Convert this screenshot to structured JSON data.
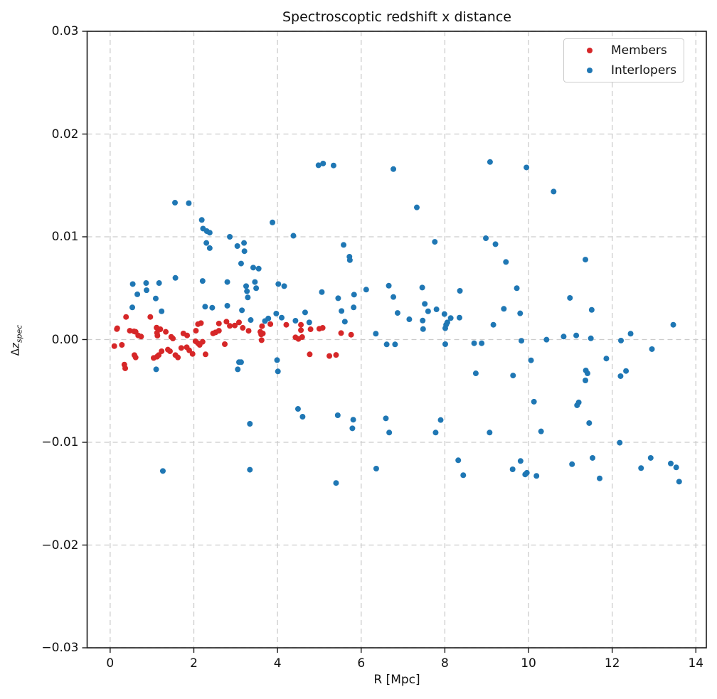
{
  "chart_data": {
    "type": "scatter",
    "title": "Spectroscoptic redshift x distance",
    "xlabel": "R [Mpc]",
    "ylabel": "Δz_spec",
    "ylabel_display": {
      "main": "Δz",
      "sub": "spec"
    },
    "xlim": [
      -0.55,
      14.25
    ],
    "ylim": [
      -0.03,
      0.03
    ],
    "x_ticks": [
      0,
      2,
      4,
      6,
      8,
      10,
      12,
      14
    ],
    "x_tick_labels": [
      "0",
      "2",
      "4",
      "6",
      "8",
      "10",
      "12",
      "14"
    ],
    "y_ticks": [
      -0.03,
      -0.02,
      -0.01,
      0.0,
      0.01,
      0.02,
      0.03
    ],
    "y_tick_labels": [
      "−0.03",
      "−0.02",
      "−0.01",
      "0.00",
      "0.01",
      "0.02",
      "0.03"
    ],
    "grid": true,
    "grid_color": "#cccccc",
    "spine_color": "#1a1a1a",
    "legend_position": "upper right",
    "marker_radius_px": 4,
    "series": [
      {
        "name": "Members",
        "color": "#d62728",
        "points": [
          [
            0.16,
            0.00102
          ],
          [
            0.17,
            0.0011
          ],
          [
            0.38,
            0.0022
          ],
          [
            0.96,
            0.0022
          ],
          [
            0.47,
            0.00086
          ],
          [
            0.57,
            0.0008
          ],
          [
            0.61,
            0.00075
          ],
          [
            0.67,
            0.0004
          ],
          [
            0.74,
            0.00029
          ],
          [
            1.11,
            0.00116
          ],
          [
            1.2,
            0.001
          ],
          [
            1.12,
            0.00065
          ],
          [
            1.13,
            0.00038
          ],
          [
            1.33,
            0.00075
          ],
          [
            1.46,
            0.00026
          ],
          [
            1.5,
            0.0001
          ],
          [
            1.75,
            0.00059
          ],
          [
            1.84,
            0.0004
          ],
          [
            2.05,
            0.00086
          ],
          [
            2.1,
            0.0015
          ],
          [
            2.17,
            0.0016
          ],
          [
            2.46,
            0.0006
          ],
          [
            2.52,
            0.0007
          ],
          [
            2.6,
            0.00086
          ],
          [
            2.6,
            0.00156
          ],
          [
            2.78,
            0.00174
          ],
          [
            2.86,
            0.00133
          ],
          [
            2.98,
            0.00137
          ],
          [
            3.08,
            0.00167
          ],
          [
            3.17,
            0.00114
          ],
          [
            3.31,
            0.00085
          ],
          [
            3.59,
            0.00075
          ],
          [
            3.65,
            0.00059
          ],
          [
            3.61,
            0.0005
          ],
          [
            3.63,
            0.0013
          ],
          [
            3.83,
            0.0015
          ],
          [
            4.21,
            0.00144
          ],
          [
            4.43,
            0.00022
          ],
          [
            4.5,
            6e-05
          ],
          [
            4.56,
            0.00144
          ],
          [
            4.56,
            0.00091
          ],
          [
            4.59,
            0.00024
          ],
          [
            4.79,
            0.001
          ],
          [
            5.0,
            0.00105
          ],
          [
            5.08,
            0.00114
          ],
          [
            5.52,
            0.00063
          ],
          [
            5.76,
            0.00047
          ],
          [
            0.1,
            -0.00064
          ],
          [
            0.28,
            -0.00052
          ],
          [
            0.34,
            -0.00244
          ],
          [
            0.36,
            -0.0028
          ],
          [
            0.58,
            -0.00151
          ],
          [
            0.61,
            -0.00174
          ],
          [
            1.04,
            -0.00179
          ],
          [
            1.12,
            -0.00167
          ],
          [
            1.16,
            -0.00151
          ],
          [
            1.23,
            -0.00114
          ],
          [
            1.38,
            -0.00098
          ],
          [
            1.43,
            -0.00114
          ],
          [
            1.56,
            -0.00151
          ],
          [
            1.62,
            -0.00174
          ],
          [
            1.7,
            -0.00082
          ],
          [
            1.83,
            -0.00075
          ],
          [
            1.89,
            -0.00105
          ],
          [
            1.97,
            -0.0014
          ],
          [
            2.04,
            -0.00017
          ],
          [
            2.1,
            -0.00036
          ],
          [
            2.14,
            -0.00052
          ],
          [
            2.21,
            -0.00022
          ],
          [
            2.28,
            -0.00144
          ],
          [
            2.74,
            -0.00045
          ],
          [
            3.62,
            -6e-05
          ],
          [
            4.77,
            -0.00144
          ],
          [
            5.24,
            -0.0016
          ],
          [
            5.4,
            -0.0015
          ]
        ]
      },
      {
        "name": "Interlopers",
        "color": "#1f77b4",
        "points": [
          [
            1.55,
            0.01332
          ],
          [
            1.88,
            0.01327
          ],
          [
            2.19,
            0.01164
          ],
          [
            2.22,
            0.0108
          ],
          [
            2.31,
            0.01055
          ],
          [
            2.38,
            0.0104
          ],
          [
            2.86,
            0.01
          ],
          [
            2.3,
            0.0094
          ],
          [
            2.38,
            0.0089
          ],
          [
            3.04,
            0.0091
          ],
          [
            3.2,
            0.0094
          ],
          [
            3.21,
            0.0086
          ],
          [
            3.13,
            0.0074
          ],
          [
            3.42,
            0.007
          ],
          [
            3.55,
            0.0069
          ],
          [
            3.88,
            0.0114
          ],
          [
            4.38,
            0.0101
          ],
          [
            0.54,
            0.0054
          ],
          [
            0.86,
            0.0055
          ],
          [
            0.87,
            0.0048
          ],
          [
            1.17,
            0.0055
          ],
          [
            0.65,
            0.0044
          ],
          [
            1.09,
            0.004
          ],
          [
            1.56,
            0.006
          ],
          [
            0.53,
            0.00313
          ],
          [
            1.23,
            0.00275
          ],
          [
            2.21,
            0.0057
          ],
          [
            2.8,
            0.0056
          ],
          [
            2.27,
            0.0032
          ],
          [
            2.44,
            0.0031
          ],
          [
            2.8,
            0.00329
          ],
          [
            3.15,
            0.00285
          ],
          [
            3.25,
            0.0052
          ],
          [
            3.27,
            0.0047
          ],
          [
            3.29,
            0.0041
          ],
          [
            3.46,
            0.0056
          ],
          [
            3.49,
            0.005
          ],
          [
            4.02,
            0.0054
          ],
          [
            4.16,
            0.0052
          ],
          [
            3.97,
            0.00253
          ],
          [
            4.1,
            0.00213
          ],
          [
            4.43,
            0.00183
          ],
          [
            3.36,
            0.0019
          ],
          [
            3.7,
            0.0018
          ],
          [
            3.78,
            0.00205
          ],
          [
            4.66,
            0.00264
          ],
          [
            4.76,
            0.00167
          ],
          [
            4.98,
            0.01696
          ],
          [
            5.09,
            0.01713
          ],
          [
            5.34,
            0.01694
          ],
          [
            6.77,
            0.01659
          ],
          [
            9.08,
            0.01728
          ],
          [
            9.95,
            0.01675
          ],
          [
            10.6,
            0.0144
          ],
          [
            7.33,
            0.01286
          ],
          [
            7.76,
            0.00951
          ],
          [
            5.58,
            0.00921
          ],
          [
            5.72,
            0.00806
          ],
          [
            5.73,
            0.00773
          ],
          [
            8.98,
            0.00986
          ],
          [
            9.21,
            0.00928
          ],
          [
            9.46,
            0.00755
          ],
          [
            11.36,
            0.00778
          ],
          [
            5.06,
            0.00462
          ],
          [
            5.45,
            0.00402
          ],
          [
            5.83,
            0.00437
          ],
          [
            6.12,
            0.00486
          ],
          [
            6.66,
            0.00524
          ],
          [
            6.77,
            0.00414
          ],
          [
            5.53,
            0.00278
          ],
          [
            5.82,
            0.00313
          ],
          [
            5.61,
            0.00174
          ],
          [
            7.46,
            0.00506
          ],
          [
            7.52,
            0.00347
          ],
          [
            6.87,
            0.00259
          ],
          [
            7.15,
            0.00197
          ],
          [
            7.6,
            0.00275
          ],
          [
            7.8,
            0.00294
          ],
          [
            7.47,
            0.00185
          ],
          [
            7.48,
            0.00102
          ],
          [
            7.99,
            0.00248
          ],
          [
            8.06,
            0.00167
          ],
          [
            8.03,
            0.00144
          ],
          [
            8.14,
            0.00209
          ],
          [
            8.35,
            0.00213
          ],
          [
            8.01,
            0.0011
          ],
          [
            8.36,
            0.00474
          ],
          [
            9.41,
            0.00299
          ],
          [
            9.16,
            0.00144
          ],
          [
            9.72,
            0.005
          ],
          [
            6.35,
            0.00057
          ],
          [
            10.99,
            0.00405
          ],
          [
            11.51,
            0.00289
          ],
          [
            9.8,
            0.00255
          ],
          [
            13.46,
            0.00144
          ],
          [
            12.44,
            0.00057
          ],
          [
            10.84,
            0.00029
          ],
          [
            11.14,
            0.0004
          ],
          [
            11.49,
            0.00012
          ],
          [
            9.83,
            -0.00012
          ],
          [
            10.43,
            -1e-05
          ],
          [
            12.21,
            -0.0001
          ],
          [
            12.95,
            -0.00093
          ],
          [
            1.1,
            -0.0029
          ],
          [
            3.05,
            -0.0029
          ],
          [
            3.08,
            -0.0022
          ],
          [
            3.13,
            -0.0022
          ],
          [
            3.99,
            -0.002
          ],
          [
            4.01,
            -0.0031
          ],
          [
            4.49,
            -0.00675
          ],
          [
            6.61,
            -0.00047
          ],
          [
            6.81,
            -0.00047
          ],
          [
            8.01,
            -0.00045
          ],
          [
            8.7,
            -0.00036
          ],
          [
            8.88,
            -0.00036
          ],
          [
            8.74,
            -0.00329
          ],
          [
            9.63,
            -0.0035
          ],
          [
            10.06,
            -0.00202
          ],
          [
            11.86,
            -0.00185
          ],
          [
            11.37,
            -0.00301
          ],
          [
            11.41,
            -0.00329
          ],
          [
            11.36,
            -0.00398
          ],
          [
            12.2,
            -0.00356
          ],
          [
            12.33,
            -0.00306
          ],
          [
            10.13,
            -0.00605
          ],
          [
            11.2,
            -0.00612
          ],
          [
            11.16,
            -0.0064
          ],
          [
            3.34,
            -0.0082
          ],
          [
            4.6,
            -0.00751
          ],
          [
            5.44,
            -0.00737
          ],
          [
            5.81,
            -0.0078
          ],
          [
            5.79,
            -0.00864
          ],
          [
            6.59,
            -0.00767
          ],
          [
            6.67,
            -0.00905
          ],
          [
            7.9,
            -0.00783
          ],
          [
            7.78,
            -0.00905
          ],
          [
            9.07,
            -0.00905
          ],
          [
            10.3,
            -0.00894
          ],
          [
            11.45,
            -0.00813
          ],
          [
            12.18,
            -0.01004
          ],
          [
            1.26,
            -0.01279
          ],
          [
            3.34,
            -0.01267
          ],
          [
            5.4,
            -0.01396
          ],
          [
            6.36,
            -0.01256
          ],
          [
            8.32,
            -0.01175
          ],
          [
            8.44,
            -0.0132
          ],
          [
            9.81,
            -0.01182
          ],
          [
            9.62,
            -0.01263
          ],
          [
            9.92,
            -0.01313
          ],
          [
            9.96,
            -0.01297
          ],
          [
            10.19,
            -0.01327
          ],
          [
            11.04,
            -0.01213
          ],
          [
            11.53,
            -0.01152
          ],
          [
            11.7,
            -0.01351
          ],
          [
            12.69,
            -0.01251
          ],
          [
            12.92,
            -0.01152
          ],
          [
            13.4,
            -0.01206
          ],
          [
            13.53,
            -0.01244
          ],
          [
            13.6,
            -0.01383
          ]
        ]
      }
    ]
  }
}
